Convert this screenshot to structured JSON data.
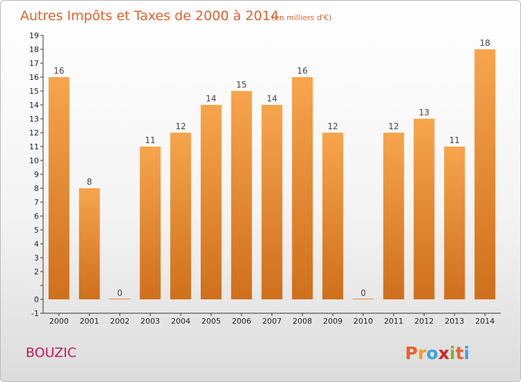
{
  "header": {
    "title": "Autres Impôts et Taxes de 2000 à 2014",
    "subtitle": "(en milliers d'€)"
  },
  "footer": {
    "commune": "BOUZIC",
    "brand_letters": [
      "P",
      "r",
      "o",
      "x",
      "i",
      "t",
      "i"
    ],
    "brand_colors": [
      "#e8612c",
      "#f29a1f",
      "#3aa4dd",
      "#d7202b",
      "#7ab72e",
      "#e8612c",
      "#3aa4dd"
    ]
  },
  "colors": {
    "bar_top": "#f7a54d",
    "bar_bottom": "#cf6f1c",
    "axis": "#333333",
    "grid": "#cccccc"
  },
  "chart_data": {
    "type": "bar",
    "categories": [
      "2000",
      "2001",
      "2002",
      "2003",
      "2004",
      "2005",
      "2006",
      "2007",
      "2008",
      "2009",
      "2010",
      "2011",
      "2012",
      "2013",
      "2014"
    ],
    "values": [
      16,
      8,
      0,
      11,
      12,
      14,
      15,
      14,
      16,
      12,
      0,
      12,
      13,
      11,
      18
    ],
    "title": "Autres Impôts et Taxes de 2000 à 2014",
    "subtitle": "(en milliers d'€)",
    "ylim": [
      -1,
      19
    ],
    "yticks": [
      "-1",
      "0",
      "",
      "2",
      "3",
      "4",
      "5",
      "6",
      "7",
      "8",
      "9",
      "10",
      "11",
      "12",
      "13",
      "14",
      "15",
      "16",
      "17",
      "18",
      "19"
    ],
    "grid": false,
    "legend": "none"
  }
}
